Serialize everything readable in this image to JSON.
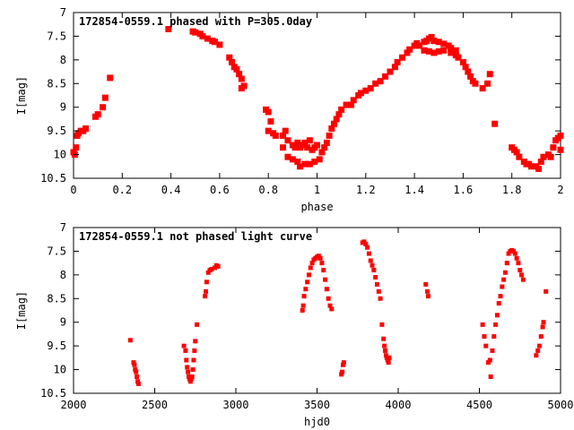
{
  "chart_data": [
    {
      "type": "scatter",
      "title": "172854-0559.1 phased with P=305.0day",
      "xlabel": "phase",
      "ylabel": "I[mag]",
      "xlim": [
        0,
        2
      ],
      "ylim": [
        10.5,
        7
      ],
      "y_inverted": true,
      "xticks": [
        0,
        0.2,
        0.4,
        0.6,
        0.8,
        1,
        1.2,
        1.4,
        1.6,
        1.8,
        2
      ],
      "xtick_labels": [
        "0",
        "0.2",
        "0.4",
        "0.6",
        "0.8",
        "1",
        "1.2",
        "1.4",
        "1.6",
        "1.8",
        "2"
      ],
      "yticks": [
        7,
        7.5,
        8,
        8.5,
        9,
        9.5,
        10,
        10.5
      ],
      "ytick_labels": [
        "7",
        "7.5",
        "8",
        "8.5",
        "9",
        "9.5",
        "10",
        "10.5"
      ],
      "grid": false,
      "marker_color": "#ff0000",
      "series": [
        {
          "points": [
            [
              0.0,
              9.95
            ],
            [
              0.005,
              10.0
            ],
            [
              0.01,
              9.85
            ],
            [
              0.015,
              9.6
            ],
            [
              0.02,
              9.55
            ],
            [
              0.03,
              9.5
            ],
            [
              0.04,
              9.5
            ],
            [
              0.05,
              9.45
            ],
            [
              0.09,
              9.2
            ],
            [
              0.1,
              9.15
            ],
            [
              0.12,
              9.0
            ],
            [
              0.13,
              8.8
            ],
            [
              0.15,
              8.38
            ],
            [
              0.39,
              7.35
            ],
            [
              0.49,
              7.4
            ],
            [
              0.5,
              7.42
            ],
            [
              0.52,
              7.45
            ],
            [
              0.53,
              7.5
            ],
            [
              0.55,
              7.55
            ],
            [
              0.57,
              7.6
            ],
            [
              0.58,
              7.62
            ],
            [
              0.6,
              7.68
            ],
            [
              0.64,
              7.95
            ],
            [
              0.65,
              8.05
            ],
            [
              0.66,
              8.15
            ],
            [
              0.67,
              8.2
            ],
            [
              0.68,
              8.3
            ],
            [
              0.69,
              8.4
            ],
            [
              0.7,
              8.55
            ],
            [
              0.69,
              8.6
            ],
            [
              0.79,
              9.05
            ],
            [
              0.8,
              9.1
            ],
            [
              0.81,
              9.3
            ],
            [
              0.8,
              9.5
            ],
            [
              0.82,
              9.55
            ],
            [
              0.83,
              9.6
            ],
            [
              0.86,
              9.6
            ],
            [
              0.87,
              9.5
            ],
            [
              0.86,
              9.85
            ],
            [
              0.88,
              9.7
            ],
            [
              0.9,
              9.8
            ],
            [
              0.91,
              9.85
            ],
            [
              0.92,
              9.75
            ],
            [
              0.93,
              9.85
            ],
            [
              0.94,
              9.8
            ],
            [
              0.95,
              9.75
            ],
            [
              0.96,
              9.85
            ],
            [
              0.97,
              9.7
            ],
            [
              0.98,
              9.9
            ],
            [
              0.99,
              9.85
            ],
            [
              1.0,
              9.8
            ],
            [
              0.88,
              10.05
            ],
            [
              0.9,
              10.1
            ],
            [
              0.92,
              10.15
            ],
            [
              0.93,
              10.25
            ],
            [
              0.95,
              10.2
            ],
            [
              0.97,
              10.2
            ],
            [
              0.99,
              10.15
            ],
            [
              1.01,
              10.1
            ],
            [
              1.02,
              9.95
            ],
            [
              1.03,
              9.85
            ],
            [
              1.04,
              9.75
            ],
            [
              1.05,
              9.6
            ],
            [
              1.06,
              9.45
            ],
            [
              1.07,
              9.35
            ],
            [
              1.08,
              9.25
            ],
            [
              1.09,
              9.15
            ],
            [
              1.1,
              9.05
            ],
            [
              1.12,
              8.95
            ],
            [
              1.14,
              8.95
            ],
            [
              1.15,
              8.85
            ],
            [
              1.17,
              8.75
            ],
            [
              1.18,
              8.7
            ],
            [
              1.2,
              8.65
            ],
            [
              1.22,
              8.6
            ],
            [
              1.24,
              8.5
            ],
            [
              1.26,
              8.45
            ],
            [
              1.28,
              8.35
            ],
            [
              1.3,
              8.25
            ],
            [
              1.32,
              8.15
            ],
            [
              1.33,
              8.05
            ],
            [
              1.35,
              7.95
            ],
            [
              1.37,
              7.85
            ],
            [
              1.38,
              7.78
            ],
            [
              1.4,
              7.7
            ],
            [
              1.41,
              7.65
            ],
            [
              1.42,
              7.7
            ],
            [
              1.44,
              7.62
            ],
            [
              1.45,
              7.6
            ],
            [
              1.46,
              7.55
            ],
            [
              1.47,
              7.52
            ],
            [
              1.48,
              7.6
            ],
            [
              1.5,
              7.62
            ],
            [
              1.52,
              7.66
            ],
            [
              1.54,
              7.7
            ],
            [
              1.55,
              7.75
            ],
            [
              1.57,
              7.8
            ],
            [
              1.44,
              7.8
            ],
            [
              1.46,
              7.82
            ],
            [
              1.48,
              7.85
            ],
            [
              1.5,
              7.82
            ],
            [
              1.52,
              7.8
            ],
            [
              1.55,
              7.85
            ],
            [
              1.57,
              7.9
            ],
            [
              1.58,
              7.95
            ],
            [
              1.6,
              8.05
            ],
            [
              1.61,
              8.15
            ],
            [
              1.62,
              8.25
            ],
            [
              1.63,
              8.35
            ],
            [
              1.64,
              8.45
            ],
            [
              1.65,
              8.5
            ],
            [
              1.68,
              8.6
            ],
            [
              1.7,
              8.5
            ],
            [
              1.71,
              8.3
            ],
            [
              1.73,
              9.35
            ],
            [
              1.8,
              9.85
            ],
            [
              1.81,
              9.9
            ],
            [
              1.82,
              9.95
            ],
            [
              1.83,
              10.05
            ],
            [
              1.85,
              10.15
            ],
            [
              1.86,
              10.2
            ],
            [
              1.87,
              10.2
            ],
            [
              1.88,
              10.25
            ],
            [
              1.9,
              10.25
            ],
            [
              1.91,
              10.3
            ],
            [
              1.92,
              10.15
            ],
            [
              1.93,
              10.05
            ],
            [
              1.95,
              10.0
            ],
            [
              1.96,
              10.05
            ],
            [
              1.97,
              9.85
            ],
            [
              1.98,
              9.7
            ],
            [
              1.99,
              9.65
            ],
            [
              2.0,
              9.6
            ],
            [
              2.0,
              9.9
            ]
          ]
        }
      ]
    },
    {
      "type": "scatter",
      "title": "172854-0559.1 not phased light curve",
      "xlabel": "hjd0",
      "ylabel": "I[mag]",
      "xlim": [
        2000,
        5000
      ],
      "ylim": [
        10.5,
        7
      ],
      "y_inverted": true,
      "xticks": [
        2000,
        2500,
        3000,
        3500,
        4000,
        4500,
        5000
      ],
      "xtick_labels": [
        "2000",
        "2500",
        "3000",
        "3500",
        "4000",
        "4500",
        "5000"
      ],
      "yticks": [
        7,
        7.5,
        8,
        8.5,
        9,
        9.5,
        10,
        10.5
      ],
      "ytick_labels": [
        "7",
        "7.5",
        "8",
        "8.5",
        "9",
        "9.5",
        "10",
        "10.5"
      ],
      "grid": false,
      "marker_color": "#ff0000",
      "series": [
        {
          "points": [
            [
              2350,
              9.38
            ],
            [
              2370,
              9.85
            ],
            [
              2375,
              9.9
            ],
            [
              2380,
              10.0
            ],
            [
              2385,
              10.05
            ],
            [
              2390,
              10.15
            ],
            [
              2395,
              10.25
            ],
            [
              2400,
              10.3
            ],
            [
              2680,
              9.5
            ],
            [
              2690,
              9.6
            ],
            [
              2695,
              9.8
            ],
            [
              2700,
              9.95
            ],
            [
              2705,
              10.05
            ],
            [
              2710,
              10.15
            ],
            [
              2715,
              10.2
            ],
            [
              2720,
              10.25
            ],
            [
              2725,
              10.2
            ],
            [
              2730,
              10.15
            ],
            [
              2735,
              10.0
            ],
            [
              2740,
              9.8
            ],
            [
              2745,
              9.6
            ],
            [
              2750,
              9.4
            ],
            [
              2760,
              9.05
            ],
            [
              2810,
              8.45
            ],
            [
              2815,
              8.35
            ],
            [
              2820,
              8.15
            ],
            [
              2830,
              7.95
            ],
            [
              2840,
              7.9
            ],
            [
              2850,
              7.88
            ],
            [
              2870,
              7.85
            ],
            [
              2880,
              7.8
            ],
            [
              2890,
              7.82
            ],
            [
              3410,
              8.75
            ],
            [
              3415,
              8.65
            ],
            [
              3420,
              8.45
            ],
            [
              3430,
              8.3
            ],
            [
              3440,
              8.15
            ],
            [
              3450,
              8.0
            ],
            [
              3460,
              7.85
            ],
            [
              3470,
              7.75
            ],
            [
              3480,
              7.68
            ],
            [
              3490,
              7.65
            ],
            [
              3500,
              7.62
            ],
            [
              3510,
              7.6
            ],
            [
              3520,
              7.65
            ],
            [
              3530,
              7.75
            ],
            [
              3540,
              7.9
            ],
            [
              3550,
              8.1
            ],
            [
              3560,
              8.3
            ],
            [
              3570,
              8.5
            ],
            [
              3580,
              8.65
            ],
            [
              3590,
              8.72
            ],
            [
              3650,
              10.1
            ],
            [
              3655,
              10.05
            ],
            [
              3660,
              9.9
            ],
            [
              3665,
              9.85
            ],
            [
              3780,
              7.32
            ],
            [
              3790,
              7.3
            ],
            [
              3800,
              7.35
            ],
            [
              3810,
              7.42
            ],
            [
              3820,
              7.55
            ],
            [
              3830,
              7.7
            ],
            [
              3840,
              7.8
            ],
            [
              3850,
              7.9
            ],
            [
              3860,
              8.05
            ],
            [
              3870,
              8.2
            ],
            [
              3880,
              8.35
            ],
            [
              3890,
              8.5
            ],
            [
              3900,
              9.05
            ],
            [
              3910,
              9.35
            ],
            [
              3915,
              9.5
            ],
            [
              3920,
              9.6
            ],
            [
              3925,
              9.7
            ],
            [
              3930,
              9.75
            ],
            [
              3935,
              9.8
            ],
            [
              3940,
              9.85
            ],
            [
              3945,
              9.75
            ],
            [
              4170,
              8.2
            ],
            [
              4180,
              8.35
            ],
            [
              4185,
              8.45
            ],
            [
              4520,
              9.05
            ],
            [
              4530,
              9.3
            ],
            [
              4540,
              9.5
            ],
            [
              4555,
              9.85
            ],
            [
              4565,
              9.8
            ],
            [
              4570,
              10.15
            ],
            [
              4580,
              9.6
            ],
            [
              4590,
              9.3
            ],
            [
              4600,
              9.05
            ],
            [
              4610,
              8.85
            ],
            [
              4620,
              8.6
            ],
            [
              4630,
              8.45
            ],
            [
              4640,
              8.25
            ],
            [
              4650,
              8.1
            ],
            [
              4660,
              7.95
            ],
            [
              4670,
              7.75
            ],
            [
              4680,
              7.55
            ],
            [
              4690,
              7.5
            ],
            [
              4700,
              7.48
            ],
            [
              4710,
              7.5
            ],
            [
              4720,
              7.55
            ],
            [
              4730,
              7.65
            ],
            [
              4740,
              7.75
            ],
            [
              4750,
              7.9
            ],
            [
              4760,
              8.0
            ],
            [
              4770,
              8.1
            ],
            [
              4850,
              9.7
            ],
            [
              4860,
              9.6
            ],
            [
              4870,
              9.5
            ],
            [
              4880,
              9.3
            ],
            [
              4890,
              9.1
            ],
            [
              4895,
              9.0
            ],
            [
              4910,
              8.35
            ]
          ]
        }
      ]
    }
  ]
}
